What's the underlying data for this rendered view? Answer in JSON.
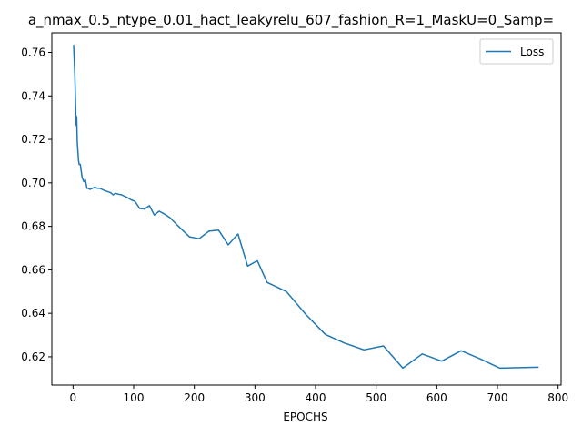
{
  "chart_data": {
    "type": "line",
    "title": "a_nmax_0.5_ntype_0.01_hact_leakyrelu_607_fashion_R=1_MaskU=0_Samp=",
    "xlabel": "EPOCHS",
    "ylabel": "",
    "xlim": [
      -35,
      805
    ],
    "ylim": [
      0.607,
      0.769
    ],
    "x_ticks": [
      0,
      100,
      200,
      300,
      400,
      500,
      600,
      700,
      800
    ],
    "y_ticks": [
      0.62,
      0.64,
      0.66,
      0.68,
      0.7,
      0.72,
      0.74,
      0.76
    ],
    "grid": false,
    "legend_position": "top-right",
    "series": [
      {
        "name": "Loss",
        "color": "#1f77b4",
        "x": [
          1,
          3,
          5,
          6,
          7,
          9,
          10,
          12,
          15,
          18,
          20,
          23,
          25,
          28,
          32,
          36,
          40,
          44,
          48,
          52,
          57,
          62,
          66,
          70,
          75,
          80,
          88,
          96,
          102,
          110,
          118,
          126,
          134,
          142,
          150,
          160,
          174,
          192,
          208,
          224,
          240,
          256,
          272,
          288,
          304,
          320,
          352,
          384,
          416,
          448,
          480,
          512,
          544,
          576,
          608,
          640,
          672,
          704,
          768
        ],
        "y": [
          0.7635,
          0.7495,
          0.7265,
          0.7305,
          0.7185,
          0.7105,
          0.7085,
          0.7085,
          0.7025,
          0.7005,
          0.7015,
          0.6975,
          0.6975,
          0.697,
          0.6975,
          0.698,
          0.6975,
          0.6975,
          0.697,
          0.6965,
          0.696,
          0.6955,
          0.6945,
          0.6952,
          0.6948,
          0.6945,
          0.6935,
          0.6922,
          0.6915,
          0.6882,
          0.688,
          0.6895,
          0.6852,
          0.687,
          0.6858,
          0.684,
          0.68,
          0.6752,
          0.6743,
          0.6778,
          0.6783,
          0.6715,
          0.6765,
          0.6617,
          0.6642,
          0.6542,
          0.65,
          0.6395,
          0.6303,
          0.6263,
          0.6232,
          0.625,
          0.6148,
          0.6213,
          0.618,
          0.6228,
          0.619,
          0.6148,
          0.6152
        ]
      }
    ]
  }
}
